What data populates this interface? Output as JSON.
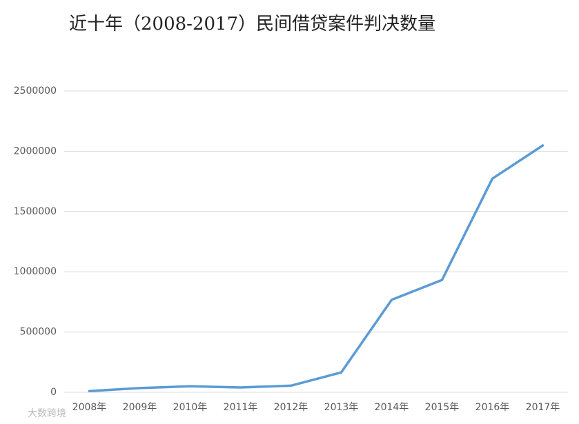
{
  "chart_data": {
    "type": "line",
    "title": "近十年（2008-2017）民间借贷案件判决数量",
    "categories": [
      "2008年",
      "2009年",
      "2010年",
      "2011年",
      "2012年",
      "2013年",
      "2014年",
      "2015年",
      "2016年",
      "2017年"
    ],
    "values": [
      10000,
      35000,
      50000,
      40000,
      55000,
      165000,
      767000,
      932000,
      1773000,
      2048000
    ],
    "color": "#5b9bd5",
    "ylim": [
      0,
      2500000
    ],
    "yticks": [
      0,
      500000,
      1000000,
      1500000,
      2000000,
      2500000
    ],
    "grid": true
  },
  "watermark": "大数跨境"
}
